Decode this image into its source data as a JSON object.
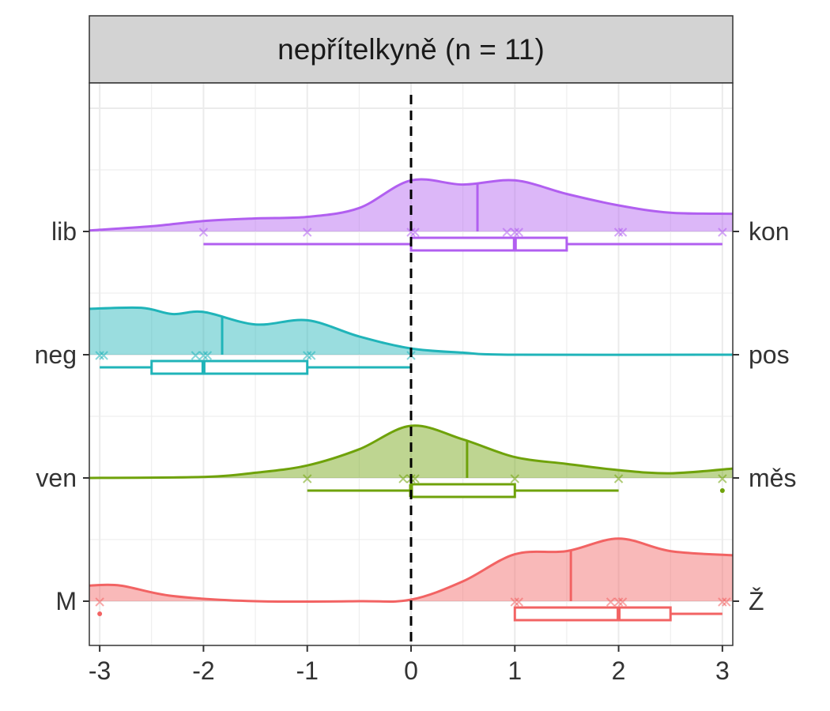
{
  "chart_data": {
    "type": "raincloud",
    "title": "nepřítelkyně (n = 11)",
    "xlabel": "",
    "ylabel": "",
    "xlim": [
      -3.1,
      3.1
    ],
    "x_ticks": [
      -3,
      -2,
      -1,
      0,
      1,
      2,
      3
    ],
    "x_tick_labels": [
      "-3",
      "-2",
      "-1",
      "0",
      "1",
      "2",
      "3"
    ],
    "reference_line_x": 0,
    "grid": true,
    "rows": [
      {
        "left_label": "lib",
        "right_label": "kon",
        "color": "#b15ff0",
        "points": [
          -2,
          -1,
          0,
          0,
          1,
          1,
          1,
          2,
          2,
          3
        ],
        "mean": 0.64,
        "box": {
          "whisker_low": -2,
          "q1": 0,
          "median": 1,
          "q3": 1.5,
          "whisker_high": 3
        },
        "outliers": [],
        "density": [
          [
            -3.1,
            0.02
          ],
          [
            -2.5,
            0.1
          ],
          [
            -2,
            0.2
          ],
          [
            -1.5,
            0.25
          ],
          [
            -1,
            0.28
          ],
          [
            -0.5,
            0.45
          ],
          [
            0,
            0.98
          ],
          [
            0.5,
            0.9
          ],
          [
            1,
            0.98
          ],
          [
            1.5,
            0.72
          ],
          [
            2,
            0.5
          ],
          [
            2.5,
            0.36
          ],
          [
            3.1,
            0.34
          ]
        ]
      },
      {
        "left_label": "neg",
        "right_label": "pos",
        "color": "#20b4b9",
        "points": [
          -3,
          -3,
          -2,
          -2,
          -2,
          -1,
          -1,
          0
        ],
        "mean": -1.82,
        "box": {
          "whisker_low": -3,
          "q1": -2.5,
          "median": -2,
          "q3": -1,
          "whisker_high": 0
        },
        "outliers": [],
        "density": [
          [
            -3.1,
            0.88
          ],
          [
            -2.6,
            0.9
          ],
          [
            -2.3,
            0.78
          ],
          [
            -2,
            0.82
          ],
          [
            -1.5,
            0.58
          ],
          [
            -1,
            0.66
          ],
          [
            -0.5,
            0.35
          ],
          [
            0,
            0.12
          ],
          [
            0.5,
            0.04
          ],
          [
            1,
            0
          ],
          [
            3.1,
            0
          ]
        ]
      },
      {
        "left_label": "ven",
        "right_label": "měs",
        "color": "#6fa20a",
        "points": [
          -1,
          0,
          0,
          0,
          1,
          2,
          3
        ],
        "mean": 0.54,
        "box": {
          "whisker_low": -1,
          "q1": 0,
          "median": 0,
          "q3": 1,
          "whisker_high": 2
        },
        "outliers": [
          3
        ],
        "density": [
          [
            -3.1,
            0
          ],
          [
            -2,
            0.02
          ],
          [
            -1.5,
            0.1
          ],
          [
            -1,
            0.24
          ],
          [
            -0.5,
            0.55
          ],
          [
            0,
            1
          ],
          [
            0.5,
            0.74
          ],
          [
            1,
            0.4
          ],
          [
            1.5,
            0.27
          ],
          [
            2,
            0.15
          ],
          [
            2.5,
            0.09
          ],
          [
            3.1,
            0.18
          ]
        ]
      },
      {
        "left_label": "M",
        "right_label": "Ž",
        "color": "#f26363",
        "points": [
          -3,
          1,
          1,
          2,
          2,
          2,
          3,
          3
        ],
        "mean": 1.54,
        "box": {
          "whisker_low": 1,
          "q1": 1,
          "median": 2,
          "q3": 2.5,
          "whisker_high": 3
        },
        "outliers": [
          -3
        ],
        "density": [
          [
            -3.1,
            0.3
          ],
          [
            -2.8,
            0.3
          ],
          [
            -2.3,
            0.1
          ],
          [
            -1.5,
            0
          ],
          [
            -0.5,
            0
          ],
          [
            0,
            0.03
          ],
          [
            0.5,
            0.38
          ],
          [
            1,
            0.9
          ],
          [
            1.5,
            0.96
          ],
          [
            2,
            1.2
          ],
          [
            2.5,
            0.96
          ],
          [
            3.1,
            0.88
          ]
        ]
      }
    ]
  }
}
